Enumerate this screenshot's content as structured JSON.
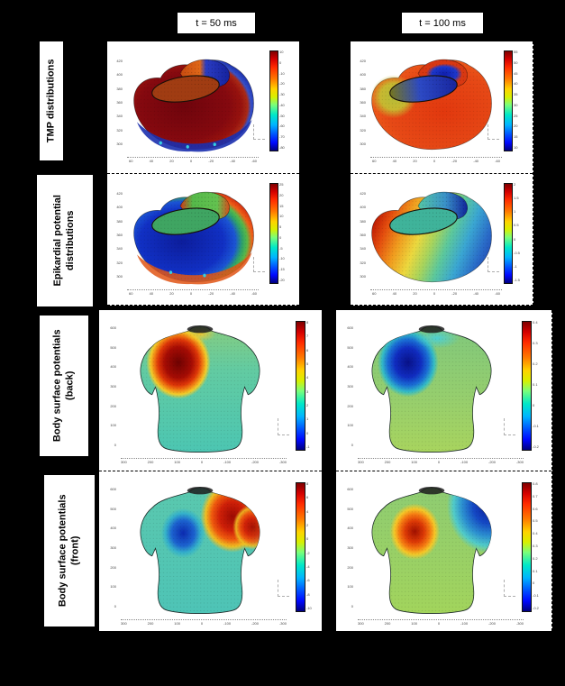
{
  "headers": {
    "t50": "t = 50 ms",
    "t100": "t = 100 ms"
  },
  "row_labels": [
    {
      "line1": "TMP distributions",
      "line2": ""
    },
    {
      "line1": "Epikardial potential",
      "line2": "distributions"
    },
    {
      "line1": "Body surface potentials",
      "line2": "(back)"
    },
    {
      "line1": "Body surface potentials",
      "line2": "(front)"
    }
  ],
  "colors": {
    "background": "#000000",
    "panel": "#ffffff",
    "jet_scale": [
      "#7f0000",
      "#ff2a00",
      "#ff7a00",
      "#ffd300",
      "#7aff7a",
      "#00e8c8",
      "#00b4ff",
      "#0050ff",
      "#00007f"
    ]
  },
  "panels": {
    "tmp50": {
      "yticks": [
        "420",
        "400",
        "380",
        "360",
        "340",
        "320",
        "300"
      ],
      "xticks": [
        "60",
        "40",
        "20",
        "0",
        "-20",
        "-40",
        "-60"
      ],
      "cticks": [
        "10",
        "0",
        "-10",
        "-20",
        "-30",
        "-40",
        "-50",
        "-60",
        "-70",
        "-80"
      ]
    },
    "tmp100": {
      "yticks": [
        "420",
        "400",
        "380",
        "360",
        "340",
        "320",
        "300"
      ],
      "xticks": [
        "60",
        "40",
        "20",
        "0",
        "-20",
        "-40",
        "-60"
      ],
      "cticks": [
        "55",
        "50",
        "45",
        "40",
        "35",
        "30",
        "25",
        "20",
        "15",
        "10"
      ]
    },
    "epi50": {
      "yticks": [
        "420",
        "400",
        "380",
        "360",
        "340",
        "320",
        "300"
      ],
      "xticks": [
        "60",
        "40",
        "20",
        "0",
        "-20",
        "-40",
        "-60"
      ],
      "cticks": [
        "25",
        "20",
        "15",
        "10",
        "5",
        "0",
        "-5",
        "-10",
        "-15",
        "-20"
      ]
    },
    "epi100": {
      "yticks": [
        "420",
        "400",
        "380",
        "360",
        "340",
        "320",
        "300"
      ],
      "xticks": [
        "60",
        "40",
        "20",
        "0",
        "-20",
        "-40",
        "-60"
      ],
      "cticks": [
        "2",
        "1.5",
        "1",
        "0.5",
        "0",
        "-0.5",
        "-1",
        "-1.5"
      ]
    },
    "back50": {
      "yticks": [
        "600",
        "500",
        "400",
        "300",
        "200",
        "100",
        "0"
      ],
      "xticks": [
        "300",
        "200",
        "100",
        "0",
        "-100",
        "-200",
        "-300"
      ],
      "cticks": [
        "8",
        "7",
        "6",
        "5",
        "4",
        "3",
        "2",
        "1",
        "0",
        "-1"
      ]
    },
    "back100": {
      "yticks": [
        "600",
        "500",
        "400",
        "300",
        "200",
        "100",
        "0"
      ],
      "xticks": [
        "300",
        "200",
        "100",
        "0",
        "-100",
        "-200",
        "-300"
      ],
      "cticks": [
        "0.4",
        "0.3",
        "0.2",
        "0.1",
        "0",
        "-0.1",
        "-0.2"
      ]
    },
    "front50": {
      "yticks": [
        "600",
        "500",
        "400",
        "300",
        "200",
        "100",
        "0"
      ],
      "xticks": [
        "300",
        "200",
        "100",
        "0",
        "-100",
        "-200",
        "-300"
      ],
      "cticks": [
        "8",
        "6",
        "4",
        "2",
        "0",
        "-2",
        "-4",
        "-6",
        "-8",
        "-10"
      ]
    },
    "front100": {
      "yticks": [
        "600",
        "500",
        "400",
        "300",
        "200",
        "100",
        "0"
      ],
      "xticks": [
        "300",
        "200",
        "100",
        "0",
        "-100",
        "-200",
        "-300"
      ],
      "cticks": [
        "0.8",
        "0.7",
        "0.6",
        "0.5",
        "0.4",
        "0.3",
        "0.2",
        "0.1",
        "0",
        "-0.1",
        "-0.2"
      ]
    }
  }
}
